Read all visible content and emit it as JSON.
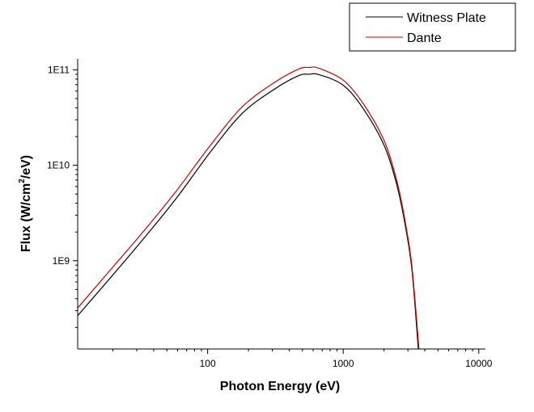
{
  "chart_data": {
    "type": "line",
    "title": "",
    "xlabel": "Photon Energy (eV)",
    "ylabel_main": "Flux (W/cm",
    "ylabel_sup": "2",
    "ylabel_tail": "/eV)",
    "xscale": "log",
    "yscale": "log",
    "xlim": [
      11,
      11200
    ],
    "ylim": [
      119000000.0,
      130000000000.0
    ],
    "x_ticks": [
      {
        "value": 100,
        "label": "100"
      },
      {
        "value": 1000,
        "label": "1000"
      },
      {
        "value": 10000,
        "label": "10000"
      }
    ],
    "y_ticks": [
      {
        "value": 1000000000.0,
        "label": "1E9"
      },
      {
        "value": 10000000000.0,
        "label": "1E10"
      },
      {
        "value": 100000000000.0,
        "label": "1E11"
      }
    ],
    "grid": false,
    "legend_position": "top-right",
    "series": [
      {
        "name": "Witness Plate",
        "color": "#000000",
        "points": [
          [
            11,
            266000000.0
          ],
          [
            17.5,
            570000000.0
          ],
          [
            34.8,
            1800000000.0
          ],
          [
            60,
            4700000000.0
          ],
          [
            104,
            13600000000.0
          ],
          [
            180,
            35000000000.0
          ],
          [
            312,
            63000000000.0
          ],
          [
            470,
            87000000000.0
          ],
          [
            560,
            90000000000.0
          ],
          [
            663,
            89000000000.0
          ],
          [
            1000,
            69000000000.0
          ],
          [
            1410,
            39000000000.0
          ],
          [
            1990,
            16500000000.0
          ],
          [
            2440,
            6900000000.0
          ],
          [
            2790,
            2900000000.0
          ],
          [
            3200,
            850000000.0
          ],
          [
            3580,
            119000000.0
          ]
        ]
      },
      {
        "name": "Dante",
        "color": "#cc0000",
        "points": [
          [
            11,
            320000000.0
          ],
          [
            17.5,
            690000000.0
          ],
          [
            34.8,
            2150000000.0
          ],
          [
            60,
            5600000000.0
          ],
          [
            104,
            16000000000.0
          ],
          [
            180,
            41000000000.0
          ],
          [
            312,
            74000000000.0
          ],
          [
            470,
            102000000000.0
          ],
          [
            560,
            106000000000.0
          ],
          [
            663,
            104000000000.0
          ],
          [
            1000,
            78000000000.0
          ],
          [
            1410,
            44000000000.0
          ],
          [
            1990,
            18500000000.0
          ],
          [
            2440,
            7600000000.0
          ],
          [
            2790,
            3150000000.0
          ],
          [
            3200,
            920000000.0
          ],
          [
            3620,
            119000000.0
          ]
        ]
      }
    ]
  }
}
